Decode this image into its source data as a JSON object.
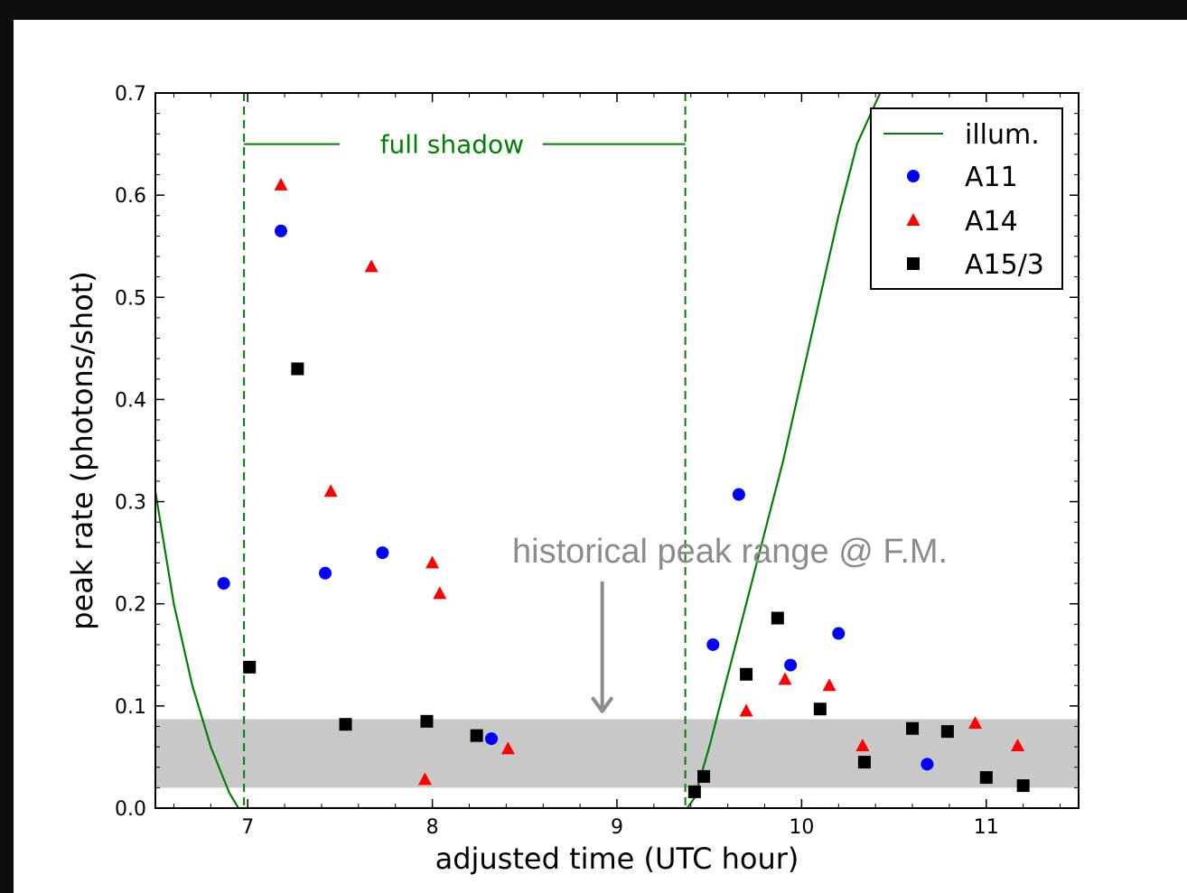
{
  "chart_data": {
    "type": "scatter",
    "xlabel": "adjusted time (UTC hour)",
    "ylabel": "peak rate (photons/shot)",
    "xlim": [
      6.5,
      11.5
    ],
    "ylim": [
      0.0,
      0.7
    ],
    "xticks": [
      7,
      8,
      9,
      10,
      11
    ],
    "yticks": [
      0.0,
      0.1,
      0.2,
      0.3,
      0.4,
      0.5,
      0.6,
      0.7
    ],
    "xtick_labels": [
      "7",
      "8",
      "9",
      "10",
      "11"
    ],
    "ytick_labels": [
      "0.0",
      "0.1",
      "0.2",
      "0.3",
      "0.4",
      "0.5",
      "0.6",
      "0.7"
    ],
    "grid": false,
    "legend_position": "top-right",
    "shaded_band": {
      "y_range": [
        0.02,
        0.087
      ],
      "color": "#c8c8c8"
    },
    "annotation": {
      "text": "historical  peak range @ F.M.",
      "arrow_x": 8.92,
      "arrow_from_y": 0.222,
      "arrow_to_y": 0.093,
      "color": "#8c8c8c"
    },
    "shadow": {
      "label": "full shadow",
      "x_start": 6.98,
      "x_end": 9.37,
      "y": 0.65,
      "color": "#008000"
    },
    "series": [
      {
        "name": "illum.",
        "kind": "line",
        "color": "#008000",
        "x": [
          6.5,
          6.6,
          6.7,
          6.8,
          6.9,
          6.95,
          7.0,
          7.2,
          8.0,
          9.0,
          9.38,
          9.42,
          9.5,
          9.6,
          9.7,
          9.8,
          9.9,
          10.0,
          10.1,
          10.2,
          10.3,
          10.4,
          10.45
        ],
        "y": [
          0.31,
          0.2,
          0.12,
          0.06,
          0.015,
          0.0,
          0.0,
          0.0,
          0.0,
          0.0,
          0.0,
          0.01,
          0.06,
          0.13,
          0.2,
          0.27,
          0.34,
          0.42,
          0.5,
          0.58,
          0.65,
          0.69,
          0.71
        ]
      },
      {
        "name": "A11",
        "kind": "marker",
        "marker": "circle",
        "color": "#0000ff",
        "x": [
          6.87,
          7.18,
          7.42,
          7.73,
          8.32,
          9.52,
          9.66,
          9.94,
          10.2,
          10.68
        ],
        "y": [
          0.22,
          0.565,
          0.23,
          0.25,
          0.068,
          0.16,
          0.307,
          0.14,
          0.171,
          0.043
        ]
      },
      {
        "name": "A14",
        "kind": "marker",
        "marker": "triangle",
        "color": "#ff0000",
        "x": [
          7.18,
          7.45,
          7.67,
          7.96,
          8.0,
          8.04,
          8.41,
          9.7,
          9.91,
          10.15,
          10.33,
          10.94,
          11.17
        ],
        "y": [
          0.61,
          0.31,
          0.53,
          0.028,
          0.24,
          0.21,
          0.058,
          0.095,
          0.126,
          0.12,
          0.061,
          0.083,
          0.061
        ]
      },
      {
        "name": "A15/3",
        "kind": "marker",
        "marker": "square",
        "color": "#000000",
        "x": [
          7.01,
          7.27,
          7.53,
          7.97,
          8.24,
          9.42,
          9.47,
          9.7,
          9.87,
          10.1,
          10.34,
          10.6,
          10.79,
          11.0,
          11.2
        ],
        "y": [
          0.138,
          0.43,
          0.082,
          0.085,
          0.071,
          0.016,
          0.031,
          0.131,
          0.186,
          0.097,
          0.045,
          0.078,
          0.075,
          0.03,
          0.022
        ]
      }
    ]
  }
}
